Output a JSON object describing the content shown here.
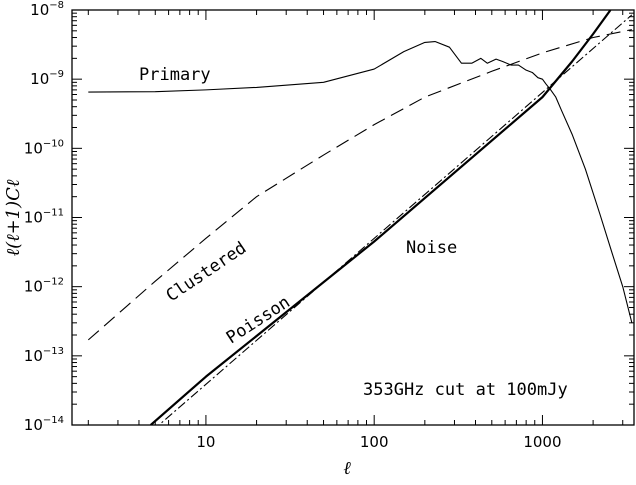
{
  "chart_data": {
    "type": "line",
    "title": "",
    "xlabel": "ℓ",
    "ylabel": "ℓ(ℓ+1)Cℓ",
    "x_scale": "log",
    "y_scale": "log",
    "xlim": [
      1.6,
      3500
    ],
    "ylim": [
      1e-14,
      1e-08
    ],
    "grid": false,
    "x_ticks": [
      {
        "value": 10,
        "label": "10"
      },
      {
        "value": 100,
        "label": "100"
      },
      {
        "value": 1000,
        "label": "1000"
      }
    ],
    "y_ticks": [
      {
        "value": 1e-14,
        "base": "10",
        "exp": "−14"
      },
      {
        "value": 1e-13,
        "base": "10",
        "exp": "−13"
      },
      {
        "value": 1e-12,
        "base": "10",
        "exp": "−12"
      },
      {
        "value": 1e-11,
        "base": "10",
        "exp": "−11"
      },
      {
        "value": 1e-10,
        "base": "10",
        "exp": "−10"
      },
      {
        "value": 1e-09,
        "base": "10",
        "exp": "−9"
      },
      {
        "value": 1e-08,
        "base": "10",
        "exp": "−8"
      }
    ],
    "series": [
      {
        "name": "Primary",
        "style": "solid-thin",
        "points": [
          [
            2,
            6.5e-10
          ],
          [
            5,
            6.6e-10
          ],
          [
            10,
            7e-10
          ],
          [
            20,
            7.6e-10
          ],
          [
            50,
            9e-10
          ],
          [
            100,
            1.4e-09
          ],
          [
            150,
            2.5e-09
          ],
          [
            200,
            3.4e-09
          ],
          [
            230,
            3.5e-09
          ],
          [
            280,
            2.9e-09
          ],
          [
            330,
            1.7e-09
          ],
          [
            380,
            1.7e-09
          ],
          [
            430,
            2e-09
          ],
          [
            470,
            1.7e-09
          ],
          [
            530,
            1.95e-09
          ],
          [
            580,
            1.8e-09
          ],
          [
            650,
            1.6e-09
          ],
          [
            720,
            1.6e-09
          ],
          [
            800,
            1.35e-09
          ],
          [
            870,
            1.25e-09
          ],
          [
            940,
            1.05e-09
          ],
          [
            1000,
            1e-09
          ],
          [
            1050,
            8.5e-10
          ],
          [
            1120,
            7e-10
          ],
          [
            1200,
            5.5e-10
          ],
          [
            1300,
            3.5e-10
          ],
          [
            1500,
            1.6e-10
          ],
          [
            1800,
            5e-11
          ],
          [
            2200,
            1.1e-11
          ],
          [
            2600,
            3e-12
          ],
          [
            3000,
            1e-12
          ],
          [
            3400,
            3e-13
          ]
        ]
      },
      {
        "name": "Clustered",
        "style": "dashed",
        "points": [
          [
            2,
            1.7e-13
          ],
          [
            5,
            1.2e-12
          ],
          [
            10,
            5e-12
          ],
          [
            20,
            2e-11
          ],
          [
            50,
            8e-11
          ],
          [
            100,
            2.2e-10
          ],
          [
            200,
            5.5e-10
          ],
          [
            500,
            1.3e-09
          ],
          [
            1000,
            2.4e-09
          ],
          [
            2000,
            4e-09
          ],
          [
            3400,
            5.2e-09
          ]
        ]
      },
      {
        "name": "Poisson",
        "style": "dash-dot",
        "points": [
          [
            2,
            1.3e-15
          ],
          [
            3400,
            8.5e-09
          ]
        ]
      },
      {
        "name": "Noise",
        "style": "solid-thick",
        "points": [
          [
            4.7,
            1e-14
          ],
          [
            10,
            5e-14
          ],
          [
            100,
            4.5e-12
          ],
          [
            1000,
            5.5e-10
          ],
          [
            1500,
            1.8e-09
          ],
          [
            2000,
            4.5e-09
          ],
          [
            2500,
            9.5e-09
          ],
          [
            2800,
            1.5e-08
          ]
        ]
      }
    ],
    "annotations": [
      {
        "text": "353GHz cut at 100mJy"
      }
    ]
  }
}
